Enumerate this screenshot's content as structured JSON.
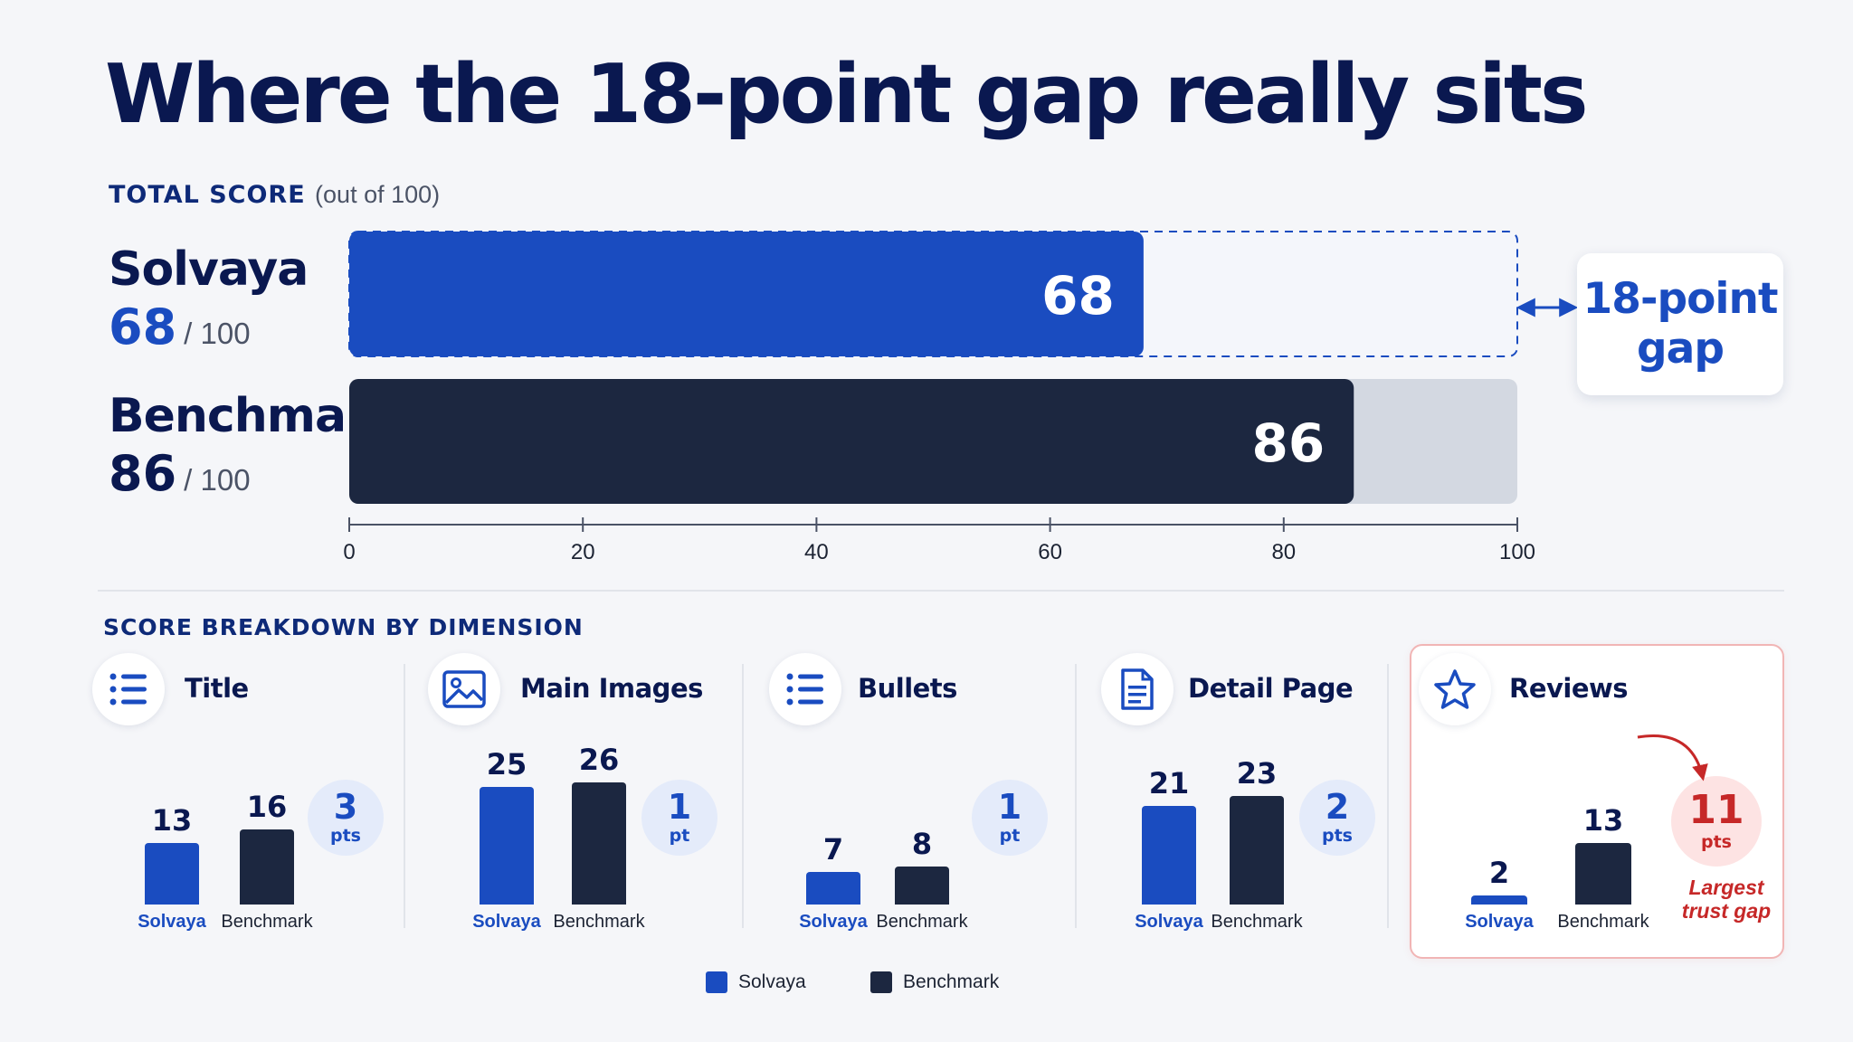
{
  "title": "Where the 18-point gap really sits",
  "total": {
    "label": "TOTAL SCORE",
    "sublabel": "(out of 100)",
    "max_text": "/ 100",
    "gap_callout": "18-point gap"
  },
  "breakdown": {
    "label": "SCORE BREAKDOWN BY DIMENSION"
  },
  "colors": {
    "solvaya": "#1a4cc0",
    "benchmark": "#1c2740",
    "highlight": "#c62828"
  },
  "chart_data": [
    {
      "type": "bar",
      "orientation": "horizontal",
      "title": "TOTAL SCORE (out of 100)",
      "categories": [
        "Solvaya",
        "Benchmark"
      ],
      "values": [
        68,
        86
      ],
      "xlim": [
        0,
        100
      ],
      "xticks": [
        "0",
        "20",
        "40",
        "60",
        "80",
        "100"
      ],
      "annotation": "18-point gap"
    },
    {
      "type": "bar",
      "title": "SCORE BREAKDOWN BY DIMENSION",
      "categories": [
        "Title",
        "Main Images",
        "Bullets",
        "Detail Page",
        "Reviews"
      ],
      "series": [
        {
          "name": "Solvaya",
          "values": [
            13,
            25,
            7,
            21,
            2
          ]
        },
        {
          "name": "Benchmark",
          "values": [
            16,
            26,
            8,
            23,
            13
          ]
        }
      ],
      "gaps": [
        {
          "num": "3",
          "unit": "pts"
        },
        {
          "num": "1",
          "unit": "pt"
        },
        {
          "num": "1",
          "unit": "pt"
        },
        {
          "num": "2",
          "unit": "pts"
        },
        {
          "num": "11",
          "unit": "pts"
        }
      ],
      "highlight": {
        "category": "Reviews",
        "note": "Largest trust gap"
      },
      "icons": [
        "list-icon",
        "image-icon",
        "list-icon",
        "document-icon",
        "star-icon"
      ],
      "legend": [
        "Solvaya",
        "Benchmark"
      ]
    }
  ]
}
